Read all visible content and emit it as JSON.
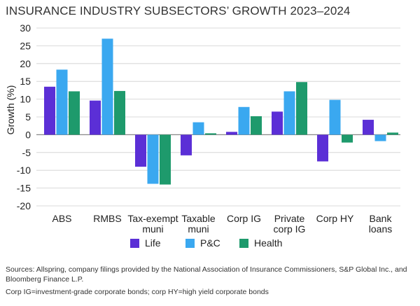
{
  "title": "INSURANCE INDUSTRY SUBSECTORS’ GROWTH 2023–2024",
  "notes": {
    "sources": "Sources: Allspring, company filings provided by the National Association of Insurance Commissioners, S&P Global Inc., and Bloomberg Finance L.P.",
    "definitions": "Corp IG=investment-grade corporate bonds; corp HY=high yield corporate bonds"
  },
  "colors": {
    "Life": "#5b2fd6",
    "P&C": "#3aa8f0",
    "Health": "#1e9a6c",
    "grid": "#cfcfcf",
    "axis": "#888888"
  },
  "chart_data": {
    "type": "bar",
    "title": "INSURANCE INDUSTRY SUBSECTORS’ GROWTH 2023–2024",
    "xlabel": "",
    "ylabel": "Growth (%)",
    "ylim": [
      -20,
      30
    ],
    "yticks": [
      30,
      25,
      20,
      15,
      10,
      5,
      0,
      -5,
      -10,
      -15,
      -20
    ],
    "ytick_labels": [
      "30",
      "25",
      "20",
      "15",
      "10",
      "5",
      "0",
      "-5",
      "-10",
      "-15",
      "-20"
    ],
    "grid": true,
    "legend_position": "bottom-center",
    "categories": [
      [
        "ABS"
      ],
      [
        "RMBS"
      ],
      [
        "Tax-exempt",
        "muni"
      ],
      [
        "Taxable",
        "muni"
      ],
      [
        "Corp IG"
      ],
      [
        "Private",
        "corp IG"
      ],
      [
        "Corp HY"
      ],
      [
        "Bank",
        "loans"
      ]
    ],
    "series": [
      {
        "name": "Life",
        "values": [
          13.5,
          9.6,
          -9.0,
          -5.8,
          0.8,
          6.5,
          -7.5,
          4.2
        ]
      },
      {
        "name": "P&C",
        "values": [
          18.3,
          27.0,
          -13.8,
          3.5,
          7.8,
          12.2,
          9.8,
          -1.8
        ]
      },
      {
        "name": "Health",
        "values": [
          12.2,
          12.3,
          -14.0,
          0.4,
          5.2,
          14.8,
          -2.2,
          0.6
        ]
      }
    ]
  }
}
